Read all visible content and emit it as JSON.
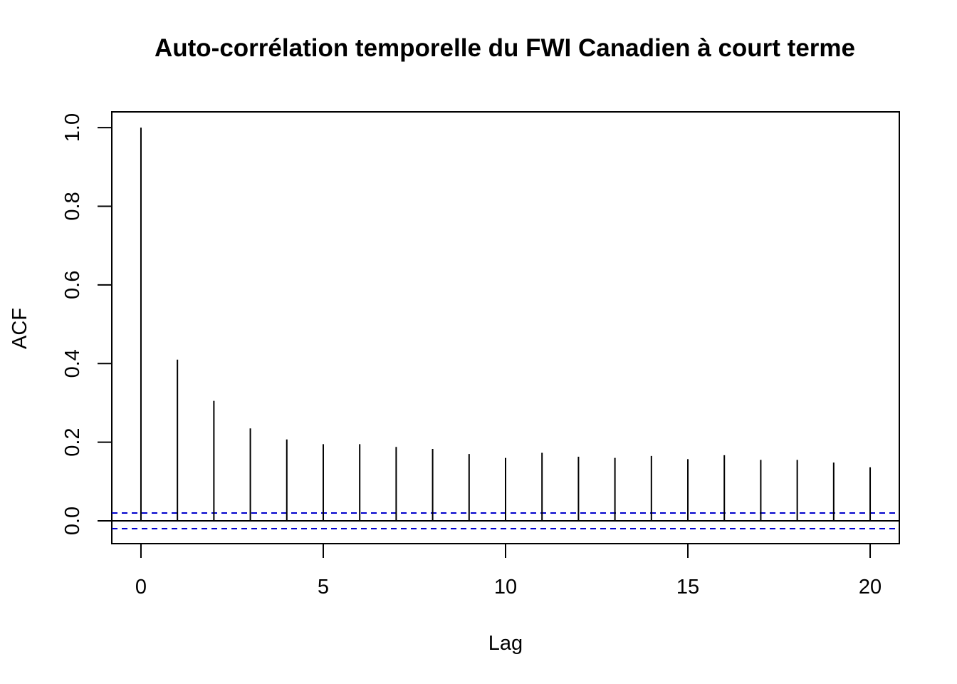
{
  "chart_data": {
    "type": "bar",
    "title": "Auto-corrélation temporelle du FWI Canadien à court terme",
    "xlabel": "Lag",
    "ylabel": "ACF",
    "x": [
      0,
      1,
      2,
      3,
      4,
      5,
      6,
      7,
      8,
      9,
      10,
      11,
      12,
      13,
      14,
      15,
      16,
      17,
      18,
      19,
      20
    ],
    "values": [
      1.0,
      0.41,
      0.305,
      0.235,
      0.207,
      0.195,
      0.195,
      0.188,
      0.183,
      0.17,
      0.16,
      0.173,
      0.163,
      0.16,
      0.165,
      0.157,
      0.167,
      0.155,
      0.155,
      0.148,
      0.136
    ],
    "xlim": [
      -0.8,
      20.8
    ],
    "ylim": [
      -0.058,
      1.04
    ],
    "x_ticks": [
      "0",
      "5",
      "10",
      "15",
      "20"
    ],
    "y_ticks": [
      "0.0",
      "0.2",
      "0.4",
      "0.6",
      "0.8",
      "1.0"
    ],
    "confidence_bound": 0.02,
    "confidence_color": "#0000cc",
    "grid": false
  }
}
